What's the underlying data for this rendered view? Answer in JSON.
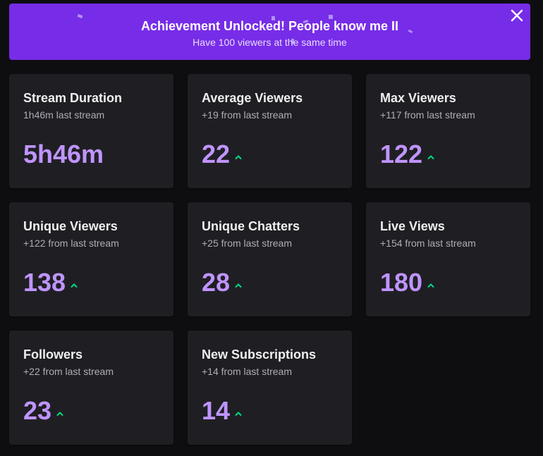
{
  "banner": {
    "title": "Achievement Unlocked! People know me II",
    "subtitle": "Have 100 viewers at the same time",
    "background": "#772ce8"
  },
  "colors": {
    "page_bg": "#0e0e10",
    "card_bg": "#1f1f23",
    "value": "#bf94ff",
    "trend_up": "#00db84"
  },
  "cards": [
    {
      "title": "Stream Duration",
      "subtitle": "1h46m last stream",
      "value": "5h46m",
      "trend": "none"
    },
    {
      "title": "Average Viewers",
      "subtitle": "+19 from last stream",
      "value": "22",
      "trend": "up"
    },
    {
      "title": "Max Viewers",
      "subtitle": "+117 from last stream",
      "value": "122",
      "trend": "up"
    },
    {
      "title": "Unique Viewers",
      "subtitle": "+122 from last stream",
      "value": "138",
      "trend": "up"
    },
    {
      "title": "Unique Chatters",
      "subtitle": "+25 from last stream",
      "value": "28",
      "trend": "up"
    },
    {
      "title": "Live Views",
      "subtitle": "+154 from last stream",
      "value": "180",
      "trend": "up"
    },
    {
      "title": "Followers",
      "subtitle": "+22 from last stream",
      "value": "23",
      "trend": "up"
    },
    {
      "title": "New Subscriptions",
      "subtitle": "+14 from last stream",
      "value": "14",
      "trend": "up"
    }
  ]
}
